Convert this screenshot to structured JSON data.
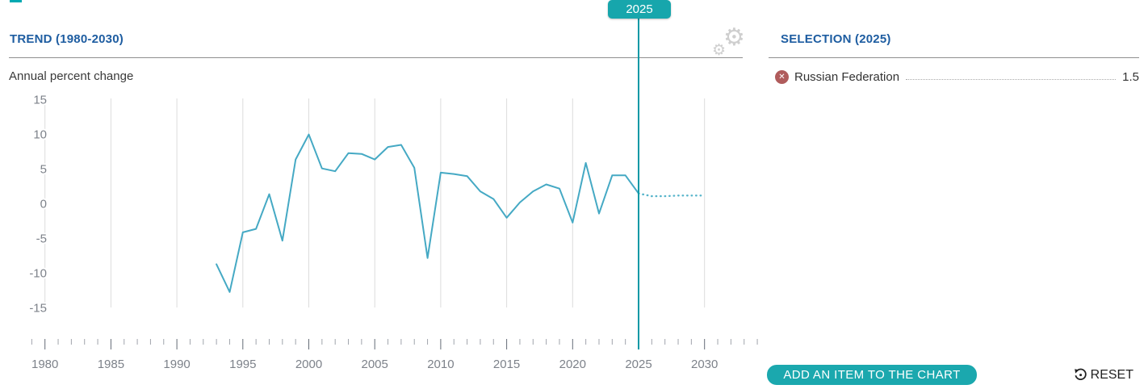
{
  "accent_color": "#17a6ac",
  "header": {
    "trend_title": "TREND (1980-2030)",
    "selection_title": "SELECTION (2025)"
  },
  "marker": {
    "year_label": "2025"
  },
  "chart_data": {
    "type": "line",
    "title": "TREND (1980-2030)",
    "subtitle": "Annual percent change",
    "xlabel": "",
    "ylabel": "Annual percent change",
    "xlim": [
      1979,
      2034
    ],
    "ylim": [
      -15,
      15
    ],
    "yticks": [
      15,
      10,
      5,
      0,
      -5,
      -10,
      -15
    ],
    "xticks": [
      1980,
      1985,
      1990,
      1995,
      2000,
      2005,
      2010,
      2015,
      2020,
      2025,
      2030
    ],
    "grid": "vertical",
    "legend_position": "none",
    "marker_year": 2025,
    "series": [
      {
        "name": "Russian Federation",
        "color": "#45a9c4",
        "solid": {
          "years": [
            1993,
            1994,
            1995,
            1996,
            1997,
            1998,
            1999,
            2000,
            2001,
            2002,
            2003,
            2004,
            2005,
            2006,
            2007,
            2008,
            2009,
            2010,
            2011,
            2012,
            2013,
            2014,
            2015,
            2016,
            2017,
            2018,
            2019,
            2020,
            2021,
            2022,
            2023,
            2024,
            2025
          ],
          "values": [
            -8.7,
            -12.7,
            -4.1,
            -3.6,
            1.4,
            -5.3,
            6.4,
            10.0,
            5.1,
            4.7,
            7.3,
            7.2,
            6.4,
            8.2,
            8.5,
            5.2,
            -7.8,
            4.5,
            4.3,
            4.0,
            1.8,
            0.7,
            -2.0,
            0.2,
            1.8,
            2.8,
            2.2,
            -2.7,
            5.9,
            -1.4,
            4.1,
            4.1,
            1.5
          ]
        },
        "projection": {
          "style": "dotted",
          "years": [
            2025,
            2026,
            2027,
            2028,
            2029,
            2030
          ],
          "values": [
            1.5,
            1.1,
            1.1,
            1.2,
            1.2,
            1.2
          ]
        }
      }
    ]
  },
  "selection": {
    "items": [
      {
        "label": "Russian Federation",
        "value": "1.5"
      }
    ]
  },
  "icons": {
    "gear": "⚙",
    "remove": "✕"
  },
  "actions": {
    "add_item_label": "ADD AN ITEM TO THE CHART",
    "reset_label": "RESET"
  }
}
